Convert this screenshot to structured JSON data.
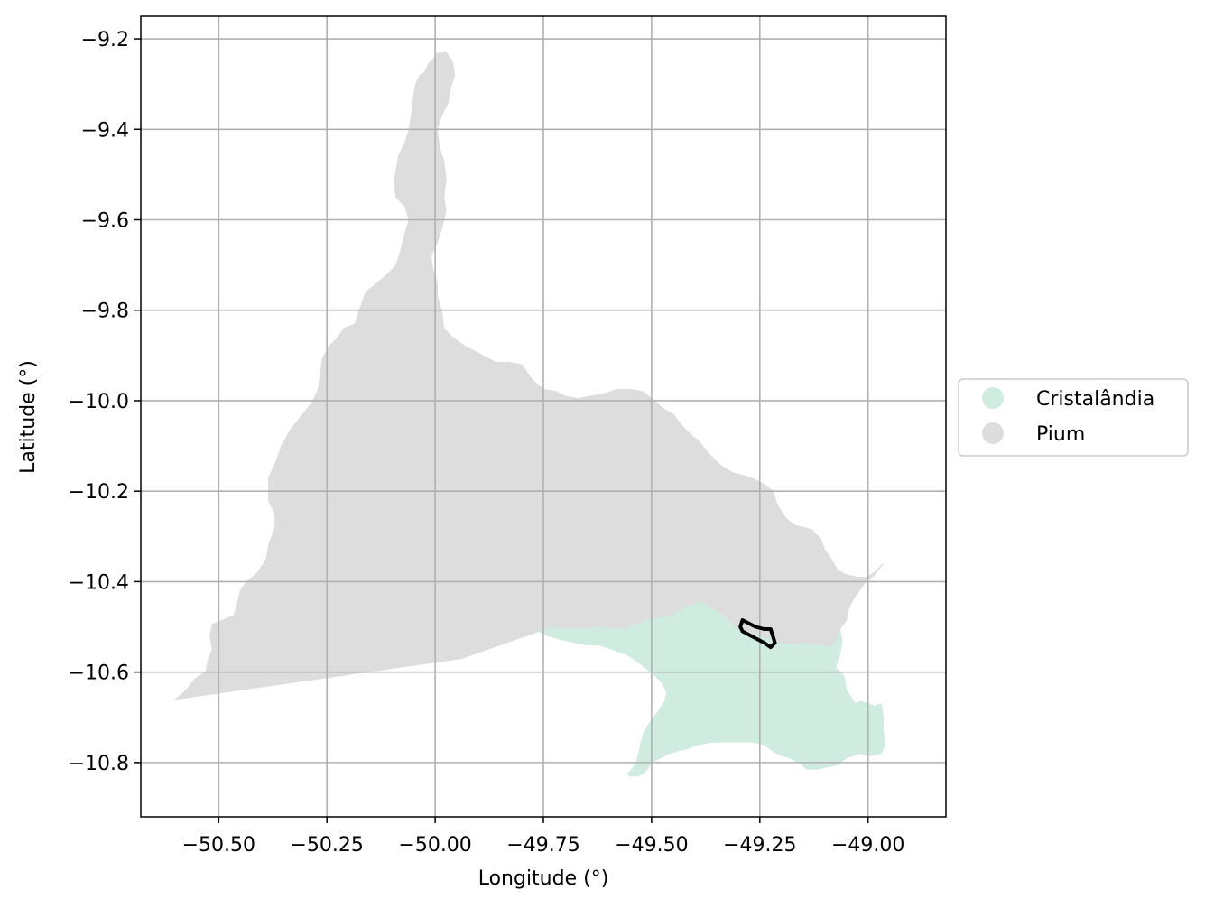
{
  "chart_data": {
    "type": "map",
    "x_axis": {
      "label": "Longitude (°)",
      "range": [
        -50.68,
        -48.82
      ],
      "ticks": [
        -50.5,
        -50.25,
        -50.0,
        -49.75,
        -49.5,
        -49.25,
        -49.0
      ],
      "tick_labels": [
        "−50.50",
        "−50.25",
        "−50.00",
        "−49.75",
        "−49.50",
        "−49.25",
        "−49.00"
      ]
    },
    "y_axis": {
      "label": "Latitude (°)",
      "range": [
        -10.92,
        -9.15
      ],
      "ticks": [
        -9.2,
        -9.4,
        -9.6,
        -9.8,
        -10.0,
        -10.2,
        -10.4,
        -10.6,
        -10.8
      ],
      "tick_labels": [
        "−9.2",
        "−9.4",
        "−9.6",
        "−9.8",
        "−10.0",
        "−10.2",
        "−10.4",
        "−10.6",
        "−10.8"
      ]
    },
    "grid": true,
    "legend_position": "right",
    "legend": [
      {
        "label": "Cristalândia",
        "color": "#d0ebdf"
      },
      {
        "label": "Pium",
        "color": "#dddddd"
      }
    ],
    "regions": [
      {
        "name": "Pium",
        "color": "#dddddd",
        "coords": [
          [
            -50.6,
            -10.66
          ],
          [
            -50.575,
            -10.64
          ],
          [
            -50.555,
            -10.615
          ],
          [
            -50.53,
            -10.6
          ],
          [
            -50.525,
            -10.575
          ],
          [
            -50.515,
            -10.55
          ],
          [
            -50.52,
            -10.52
          ],
          [
            -50.515,
            -10.495
          ],
          [
            -50.49,
            -10.485
          ],
          [
            -50.465,
            -10.475
          ],
          [
            -50.46,
            -10.46
          ],
          [
            -50.45,
            -10.42
          ],
          [
            -50.435,
            -10.4
          ],
          [
            -50.41,
            -10.38
          ],
          [
            -50.39,
            -10.35
          ],
          [
            -50.385,
            -10.32
          ],
          [
            -50.37,
            -10.28
          ],
          [
            -50.37,
            -10.25
          ],
          [
            -50.385,
            -10.22
          ],
          [
            -50.385,
            -10.17
          ],
          [
            -50.37,
            -10.14
          ],
          [
            -50.355,
            -10.1
          ],
          [
            -50.335,
            -10.065
          ],
          [
            -50.31,
            -10.035
          ],
          [
            -50.285,
            -10.005
          ],
          [
            -50.27,
            -9.975
          ],
          [
            -50.265,
            -9.94
          ],
          [
            -50.26,
            -9.905
          ],
          [
            -50.245,
            -9.88
          ],
          [
            -50.225,
            -9.86
          ],
          [
            -50.21,
            -9.84
          ],
          [
            -50.185,
            -9.83
          ],
          [
            -50.175,
            -9.8
          ],
          [
            -50.16,
            -9.76
          ],
          [
            -50.135,
            -9.74
          ],
          [
            -50.11,
            -9.72
          ],
          [
            -50.09,
            -9.7
          ],
          [
            -50.08,
            -9.67
          ],
          [
            -50.07,
            -9.63
          ],
          [
            -50.06,
            -9.6
          ],
          [
            -50.07,
            -9.57
          ],
          [
            -50.09,
            -9.55
          ],
          [
            -50.095,
            -9.52
          ],
          [
            -50.09,
            -9.49
          ],
          [
            -50.085,
            -9.46
          ],
          [
            -50.07,
            -9.43
          ],
          [
            -50.06,
            -9.4
          ],
          [
            -50.055,
            -9.37
          ],
          [
            -50.05,
            -9.33
          ],
          [
            -50.045,
            -9.3
          ],
          [
            -50.035,
            -9.28
          ],
          [
            -50.025,
            -9.275
          ],
          [
            -50.015,
            -9.255
          ],
          [
            -50.005,
            -9.245
          ],
          [
            -49.995,
            -9.232
          ],
          [
            -49.975,
            -9.23
          ],
          [
            -49.96,
            -9.25
          ],
          [
            -49.955,
            -9.28
          ],
          [
            -49.965,
            -9.31
          ],
          [
            -49.97,
            -9.34
          ],
          [
            -49.985,
            -9.37
          ],
          [
            -49.995,
            -9.4
          ],
          [
            -49.99,
            -9.44
          ],
          [
            -49.98,
            -9.47
          ],
          [
            -49.975,
            -9.51
          ],
          [
            -49.98,
            -9.55
          ],
          [
            -49.975,
            -9.58
          ],
          [
            -49.985,
            -9.62
          ],
          [
            -49.995,
            -9.65
          ],
          [
            -50.01,
            -9.68
          ],
          [
            -50.005,
            -9.71
          ],
          [
            -49.995,
            -9.74
          ],
          [
            -49.995,
            -9.77
          ],
          [
            -49.985,
            -9.8
          ],
          [
            -49.98,
            -9.84
          ],
          [
            -49.96,
            -9.86
          ],
          [
            -49.93,
            -9.88
          ],
          [
            -49.89,
            -9.9
          ],
          [
            -49.86,
            -9.915
          ],
          [
            -49.83,
            -9.915
          ],
          [
            -49.8,
            -9.92
          ],
          [
            -49.775,
            -9.955
          ],
          [
            -49.75,
            -9.975
          ],
          [
            -49.72,
            -9.98
          ],
          [
            -49.7,
            -9.99
          ],
          [
            -49.67,
            -9.995
          ],
          [
            -49.64,
            -9.99
          ],
          [
            -49.61,
            -9.985
          ],
          [
            -49.58,
            -9.975
          ],
          [
            -49.55,
            -9.975
          ],
          [
            -49.52,
            -9.98
          ],
          [
            -49.5,
            -9.995
          ],
          [
            -49.47,
            -10.02
          ],
          [
            -49.45,
            -10.03
          ],
          [
            -49.43,
            -10.055
          ],
          [
            -49.41,
            -10.075
          ],
          [
            -49.39,
            -10.09
          ],
          [
            -49.37,
            -10.115
          ],
          [
            -49.35,
            -10.135
          ],
          [
            -49.33,
            -10.15
          ],
          [
            -49.31,
            -10.16
          ],
          [
            -49.29,
            -10.165
          ],
          [
            -49.27,
            -10.17
          ],
          [
            -49.24,
            -10.185
          ],
          [
            -49.22,
            -10.2
          ],
          [
            -49.21,
            -10.23
          ],
          [
            -49.19,
            -10.26
          ],
          [
            -49.17,
            -10.275
          ],
          [
            -49.15,
            -10.28
          ],
          [
            -49.13,
            -10.285
          ],
          [
            -49.11,
            -10.305
          ],
          [
            -49.1,
            -10.33
          ],
          [
            -49.085,
            -10.35
          ],
          [
            -49.07,
            -10.375
          ],
          [
            -49.05,
            -10.385
          ],
          [
            -49.025,
            -10.39
          ],
          [
            -49.0,
            -10.39
          ],
          [
            -48.98,
            -10.375
          ],
          [
            -48.965,
            -10.36
          ],
          [
            -48.985,
            -10.385
          ],
          [
            -49.005,
            -10.4
          ],
          [
            -49.02,
            -10.42
          ],
          [
            -49.035,
            -10.44
          ],
          [
            -49.045,
            -10.46
          ],
          [
            -49.05,
            -10.485
          ],
          [
            -49.065,
            -10.505
          ],
          [
            -49.075,
            -10.535
          ],
          [
            -49.09,
            -10.545
          ],
          [
            -49.12,
            -10.54
          ],
          [
            -49.15,
            -10.535
          ],
          [
            -49.18,
            -10.54
          ],
          [
            -49.21,
            -10.535
          ],
          [
            -49.235,
            -10.525
          ],
          [
            -49.26,
            -10.52
          ],
          [
            -49.29,
            -10.515
          ],
          [
            -49.31,
            -10.5
          ],
          [
            -49.33,
            -10.48
          ],
          [
            -49.36,
            -10.46
          ],
          [
            -49.385,
            -10.445
          ],
          [
            -49.42,
            -10.455
          ],
          [
            -49.45,
            -10.475
          ],
          [
            -49.48,
            -10.48
          ],
          [
            -49.51,
            -10.485
          ],
          [
            -49.535,
            -10.495
          ],
          [
            -49.56,
            -10.505
          ],
          [
            -49.59,
            -10.505
          ],
          [
            -49.62,
            -10.5
          ],
          [
            -49.65,
            -10.505
          ],
          [
            -49.68,
            -10.505
          ],
          [
            -49.71,
            -10.505
          ],
          [
            -49.73,
            -10.5
          ],
          [
            -49.76,
            -10.51
          ],
          [
            -49.94,
            -10.57
          ]
        ]
      },
      {
        "name": "Cristalândia",
        "color": "#d0ebdf",
        "coords": [
          [
            -49.76,
            -10.51
          ],
          [
            -49.73,
            -10.5
          ],
          [
            -49.71,
            -10.505
          ],
          [
            -49.68,
            -10.505
          ],
          [
            -49.65,
            -10.505
          ],
          [
            -49.62,
            -10.5
          ],
          [
            -49.59,
            -10.505
          ],
          [
            -49.56,
            -10.505
          ],
          [
            -49.535,
            -10.495
          ],
          [
            -49.51,
            -10.485
          ],
          [
            -49.48,
            -10.48
          ],
          [
            -49.45,
            -10.475
          ],
          [
            -49.42,
            -10.455
          ],
          [
            -49.385,
            -10.445
          ],
          [
            -49.36,
            -10.46
          ],
          [
            -49.33,
            -10.48
          ],
          [
            -49.31,
            -10.5
          ],
          [
            -49.29,
            -10.515
          ],
          [
            -49.26,
            -10.52
          ],
          [
            -49.235,
            -10.525
          ],
          [
            -49.21,
            -10.535
          ],
          [
            -49.18,
            -10.54
          ],
          [
            -49.15,
            -10.535
          ],
          [
            -49.12,
            -10.54
          ],
          [
            -49.09,
            -10.545
          ],
          [
            -49.075,
            -10.535
          ],
          [
            -49.065,
            -10.505
          ],
          [
            -49.06,
            -10.53
          ],
          [
            -49.065,
            -10.56
          ],
          [
            -49.075,
            -10.59
          ],
          [
            -49.055,
            -10.61
          ],
          [
            -49.05,
            -10.64
          ],
          [
            -49.04,
            -10.655
          ],
          [
            -49.03,
            -10.67
          ],
          [
            -49.015,
            -10.665
          ],
          [
            -49.0,
            -10.67
          ],
          [
            -48.985,
            -10.675
          ],
          [
            -48.97,
            -10.67
          ],
          [
            -48.965,
            -10.7
          ],
          [
            -48.965,
            -10.73
          ],
          [
            -48.96,
            -10.76
          ],
          [
            -48.97,
            -10.78
          ],
          [
            -48.995,
            -10.785
          ],
          [
            -49.02,
            -10.78
          ],
          [
            -49.05,
            -10.79
          ],
          [
            -49.07,
            -10.805
          ],
          [
            -49.095,
            -10.81
          ],
          [
            -49.12,
            -10.815
          ],
          [
            -49.14,
            -10.815
          ],
          [
            -49.16,
            -10.8
          ],
          [
            -49.18,
            -10.79
          ],
          [
            -49.2,
            -10.785
          ],
          [
            -49.22,
            -10.775
          ],
          [
            -49.24,
            -10.76
          ],
          [
            -49.27,
            -10.755
          ],
          [
            -49.3,
            -10.755
          ],
          [
            -49.33,
            -10.755
          ],
          [
            -49.36,
            -10.755
          ],
          [
            -49.39,
            -10.76
          ],
          [
            -49.42,
            -10.77
          ],
          [
            -49.44,
            -10.775
          ],
          [
            -49.46,
            -10.78
          ],
          [
            -49.48,
            -10.79
          ],
          [
            -49.5,
            -10.8
          ],
          [
            -49.51,
            -10.815
          ],
          [
            -49.52,
            -10.825
          ],
          [
            -49.535,
            -10.83
          ],
          [
            -49.55,
            -10.83
          ],
          [
            -49.555,
            -10.825
          ],
          [
            -49.545,
            -10.815
          ],
          [
            -49.535,
            -10.8
          ],
          [
            -49.53,
            -10.78
          ],
          [
            -49.525,
            -10.76
          ],
          [
            -49.52,
            -10.74
          ],
          [
            -49.51,
            -10.72
          ],
          [
            -49.495,
            -10.7
          ],
          [
            -49.48,
            -10.68
          ],
          [
            -49.47,
            -10.665
          ],
          [
            -49.465,
            -10.645
          ],
          [
            -49.475,
            -10.625
          ],
          [
            -49.495,
            -10.605
          ],
          [
            -49.515,
            -10.59
          ],
          [
            -49.535,
            -10.575
          ],
          [
            -49.56,
            -10.56
          ],
          [
            -49.59,
            -10.55
          ],
          [
            -49.62,
            -10.54
          ],
          [
            -49.65,
            -10.54
          ],
          [
            -49.675,
            -10.535
          ],
          [
            -49.7,
            -10.53
          ],
          [
            -49.72,
            -10.525
          ],
          [
            -49.74,
            -10.52
          ]
        ]
      }
    ],
    "outline": {
      "coords": [
        [
          -49.29,
          -10.485
        ],
        [
          -49.28,
          -10.49
        ],
        [
          -49.26,
          -10.5
        ],
        [
          -49.24,
          -10.505
        ],
        [
          -49.225,
          -10.505
        ],
        [
          -49.22,
          -10.52
        ],
        [
          -49.215,
          -10.535
        ],
        [
          -49.225,
          -10.545
        ],
        [
          -49.24,
          -10.535
        ],
        [
          -49.26,
          -10.525
        ],
        [
          -49.28,
          -10.515
        ],
        [
          -49.29,
          -10.51
        ],
        [
          -49.295,
          -10.5
        ]
      ]
    }
  }
}
